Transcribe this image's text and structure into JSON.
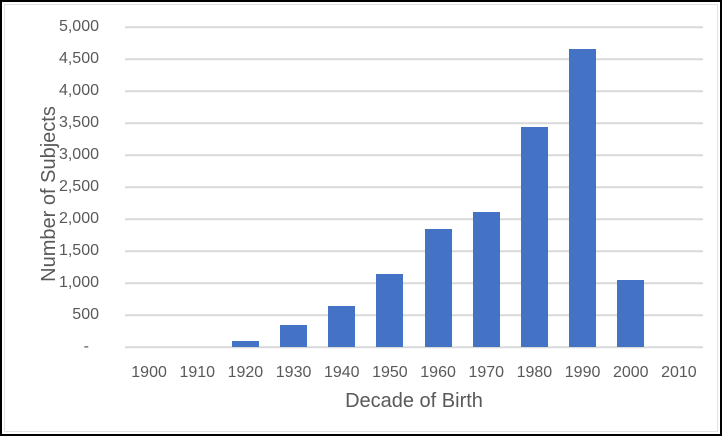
{
  "chart": {
    "background": "#ffffff",
    "outer_border_color": "#000000",
    "inner_border_color": "#e2e2e2"
  },
  "chart_data": {
    "type": "bar",
    "title": "",
    "xlabel": "Decade of Birth",
    "ylabel": "Number of Subjects",
    "categories": [
      "1900",
      "1910",
      "1920",
      "1930",
      "1940",
      "1950",
      "1960",
      "1970",
      "1980",
      "1990",
      "2000",
      "2010"
    ],
    "values": [
      0,
      0,
      100,
      350,
      640,
      1140,
      1840,
      2110,
      3440,
      4660,
      1050,
      0
    ],
    "ylim": [
      0,
      5000
    ],
    "ytick_step": 500,
    "ytick_labels": [
      "-",
      "500",
      "1,000",
      "1,500",
      "2,000",
      "2,500",
      "3,000",
      "3,500",
      "4,000",
      "4,500",
      "5,000"
    ],
    "bar_color": "#4472c4",
    "gridline_color": "#d9d9d9",
    "axis_line_color": "#d9d9d9",
    "text_color": "#595959",
    "grid": true,
    "legend": "none"
  }
}
